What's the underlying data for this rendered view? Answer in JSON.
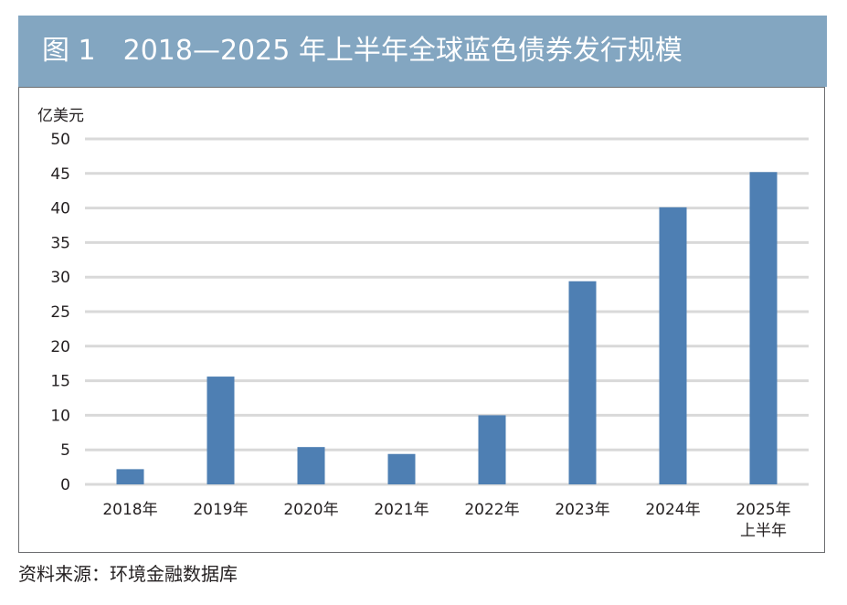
{
  "figure": {
    "title": "图 1　2018—2025 年上半年全球蓝色债券发行规模",
    "source": "资料来源：环境金融数据库"
  },
  "colors": {
    "banner": "#83a6c1",
    "bar": "#4e7fb3",
    "grid": "#d9d9d9"
  },
  "chart_data": {
    "type": "bar",
    "ylabel": "亿美元",
    "xlabel": "",
    "ylim": [
      0,
      50
    ],
    "yticks": [
      0,
      5,
      10,
      15,
      20,
      25,
      30,
      35,
      40,
      45,
      50
    ],
    "grid": true,
    "categories": [
      [
        "2018年"
      ],
      [
        "2019年"
      ],
      [
        "2020年"
      ],
      [
        "2021年"
      ],
      [
        "2022年"
      ],
      [
        "2023年"
      ],
      [
        "2024年"
      ],
      [
        "2025年",
        "上半年"
      ]
    ],
    "values": [
      2.2,
      15.6,
      5.4,
      4.4,
      10,
      29.4,
      40.1,
      45.2
    ]
  }
}
